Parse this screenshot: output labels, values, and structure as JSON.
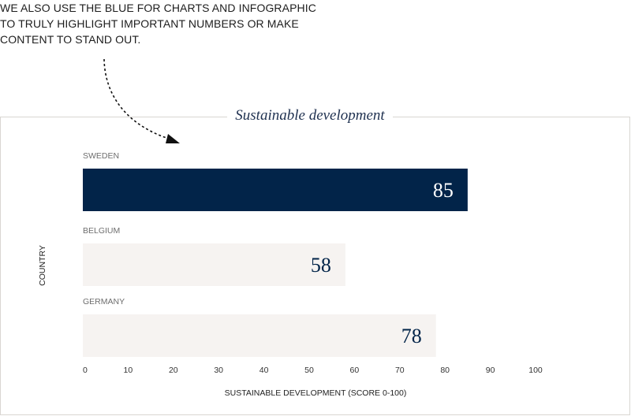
{
  "note": {
    "text": "WE ALSO USE THE BLUE FOR CHARTS AND INFOGRAPHIC TO TRULY HIGHLIGHT IMPORTANT NUMBERS OR MAKE CONTENT TO STAND OUT."
  },
  "colors": {
    "highlight_bar": "#022449",
    "muted_bar": "#f6f3f1",
    "highlight_text": "#ffffff",
    "muted_text": "#022449"
  },
  "chart_data": {
    "type": "bar",
    "orientation": "horizontal",
    "title": "Sustainable development",
    "categories": [
      "SWEDEN",
      "BELGIUM",
      "GERMANY"
    ],
    "values": [
      85,
      58,
      78
    ],
    "highlight": [
      true,
      false,
      false
    ],
    "xlabel": "SUSTAINABLE DEVELOPMENT (SCORE 0-100)",
    "ylabel": "COUNTRY",
    "xlim": [
      0,
      100
    ],
    "xticks": [
      0,
      10,
      20,
      30,
      40,
      50,
      60,
      70,
      80,
      90,
      100
    ],
    "grid": false,
    "legend": "none"
  }
}
